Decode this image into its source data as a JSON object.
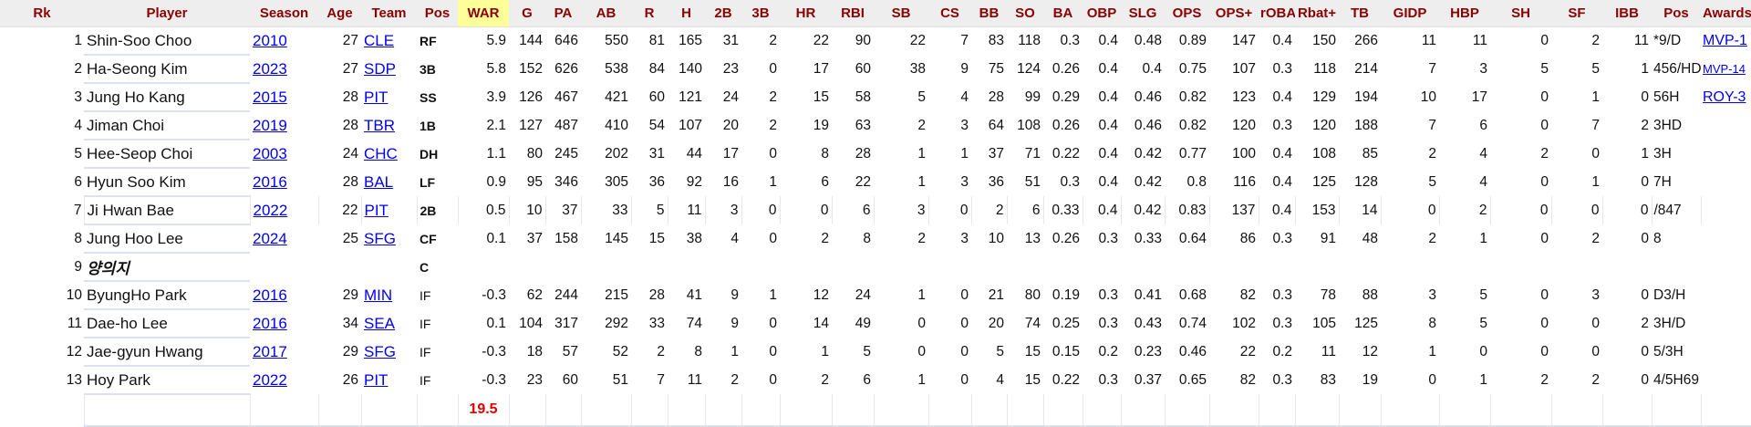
{
  "columns": [
    "Rk",
    "Player",
    "Season",
    "Age",
    "Team",
    "Pos",
    "WAR",
    "G",
    "PA",
    "AB",
    "R",
    "H",
    "2B",
    "3B",
    "HR",
    "RBI",
    "SB",
    "CS",
    "BB",
    "SO",
    "BA",
    "OBP",
    "SLG",
    "OPS",
    "OPS+",
    "rOBA",
    "Rbat+",
    "TB",
    "GIDP",
    "HBP",
    "SH",
    "SF",
    "IBB",
    "Pos",
    "Awards"
  ],
  "highlight_column": "WAR",
  "colors": {
    "header_text": "#8b0000",
    "header_bg": "#eeeeee",
    "highlight_bg": "#ffff99",
    "link": "#0000ee",
    "total": "#e00000"
  },
  "rows": [
    {
      "rk": "1",
      "player": "Shin-Soo Choo",
      "season": "2010",
      "age": "27",
      "team": "CLE",
      "pos": "RF",
      "stats": [
        "5.9",
        "144",
        "646",
        "550",
        "81",
        "165",
        "31",
        "2",
        "22",
        "90",
        "22",
        "7",
        "83",
        "118",
        "0.3",
        "0.4",
        "0.48",
        "0.89",
        "147",
        "0.4",
        "150",
        "266",
        "11",
        "11",
        "0",
        "2",
        "11"
      ],
      "pos2": "*9/D",
      "award": "MVP-1"
    },
    {
      "rk": "2",
      "player": "Ha-Seong Kim",
      "season": "2023",
      "age": "27",
      "team": "SDP",
      "pos": "3B",
      "stats": [
        "5.8",
        "152",
        "626",
        "538",
        "84",
        "140",
        "23",
        "0",
        "17",
        "60",
        "38",
        "9",
        "75",
        "124",
        "0.26",
        "0.4",
        "0.4",
        "0.75",
        "107",
        "0.3",
        "118",
        "214",
        "7",
        "3",
        "5",
        "5",
        "1"
      ],
      "pos2": "456/HD",
      "award": "MVP-14",
      "award_small": true
    },
    {
      "rk": "3",
      "player": "Jung Ho Kang",
      "season": "2015",
      "age": "28",
      "team": "PIT",
      "pos": "SS",
      "stats": [
        "3.9",
        "126",
        "467",
        "421",
        "60",
        "121",
        "24",
        "2",
        "15",
        "58",
        "5",
        "4",
        "28",
        "99",
        "0.29",
        "0.4",
        "0.46",
        "0.82",
        "123",
        "0.4",
        "129",
        "194",
        "10",
        "17",
        "0",
        "1",
        "0"
      ],
      "pos2": "56H",
      "award": "ROY-3"
    },
    {
      "rk": "4",
      "player": "Jiman Choi",
      "season": "2019",
      "age": "28",
      "team": "TBR",
      "pos": "1B",
      "stats": [
        "2.1",
        "127",
        "487",
        "410",
        "54",
        "107",
        "20",
        "2",
        "19",
        "63",
        "2",
        "3",
        "64",
        "108",
        "0.26",
        "0.4",
        "0.46",
        "0.82",
        "120",
        "0.3",
        "120",
        "188",
        "7",
        "6",
        "0",
        "7",
        "2"
      ],
      "pos2": "3HD",
      "award": ""
    },
    {
      "rk": "5",
      "player": "Hee-Seop Choi",
      "season": "2003",
      "age": "24",
      "team": "CHC",
      "pos": "DH",
      "stats": [
        "1.1",
        "80",
        "245",
        "202",
        "31",
        "44",
        "17",
        "0",
        "8",
        "28",
        "1",
        "1",
        "37",
        "71",
        "0.22",
        "0.4",
        "0.42",
        "0.77",
        "100",
        "0.4",
        "108",
        "85",
        "2",
        "4",
        "2",
        "0",
        "1"
      ],
      "pos2": "3H",
      "award": ""
    },
    {
      "rk": "6",
      "player": "Hyun Soo Kim",
      "season": "2016",
      "age": "28",
      "team": "BAL",
      "pos": "LF",
      "stats": [
        "0.9",
        "95",
        "346",
        "305",
        "36",
        "92",
        "16",
        "1",
        "6",
        "22",
        "1",
        "3",
        "36",
        "51",
        "0.3",
        "0.4",
        "0.42",
        "0.8",
        "116",
        "0.4",
        "125",
        "128",
        "5",
        "4",
        "0",
        "1",
        "0"
      ],
      "pos2": "7H",
      "award": ""
    },
    {
      "rk": "7",
      "player": "Ji Hwan Bae",
      "season": "2022",
      "age": "22",
      "team": "PIT",
      "pos": "2B",
      "stats": [
        "0.5",
        "10",
        "37",
        "33",
        "5",
        "11",
        "3",
        "0",
        "0",
        "6",
        "3",
        "0",
        "2",
        "6",
        "0.33",
        "0.4",
        "0.42",
        "0.83",
        "137",
        "0.4",
        "153",
        "14",
        "0",
        "2",
        "0",
        "0",
        "0"
      ],
      "pos2": "/847",
      "award": "",
      "grid": true
    },
    {
      "rk": "8",
      "player": "Jung Hoo Lee",
      "season": "2024",
      "age": "25",
      "team": "SFG",
      "pos": "CF",
      "stats": [
        "0.1",
        "37",
        "158",
        "145",
        "15",
        "38",
        "4",
        "0",
        "2",
        "8",
        "2",
        "3",
        "10",
        "13",
        "0.26",
        "0.3",
        "0.33",
        "0.64",
        "86",
        "0.3",
        "91",
        "48",
        "2",
        "1",
        "0",
        "2",
        "0"
      ],
      "pos2": "8",
      "award": ""
    },
    {
      "rk": "9",
      "player": "양의지",
      "player_italic": true,
      "season": "",
      "age": "",
      "team": "",
      "pos": "C",
      "stats": [
        "",
        "",
        "",
        "",
        "",
        "",
        "",
        "",
        "",
        "",
        "",
        "",
        "",
        "",
        "",
        "",
        "",
        "",
        "",
        "",
        "",
        "",
        "",
        "",
        "",
        "",
        ""
      ],
      "pos2": "",
      "award": ""
    },
    {
      "rk": "10",
      "player": "ByungHo Park",
      "season": "2016",
      "age": "29",
      "team": "MIN",
      "pos": "IF",
      "pos_plain": true,
      "stats": [
        "-0.3",
        "62",
        "244",
        "215",
        "28",
        "41",
        "9",
        "1",
        "12",
        "24",
        "1",
        "0",
        "21",
        "80",
        "0.19",
        "0.3",
        "0.41",
        "0.68",
        "82",
        "0.3",
        "78",
        "88",
        "3",
        "5",
        "0",
        "3",
        "0"
      ],
      "pos2": "D3/H",
      "award": ""
    },
    {
      "rk": "11",
      "player": "Dae-ho Lee",
      "season": "2016",
      "age": "34",
      "team": "SEA",
      "pos": "IF",
      "pos_plain": true,
      "stats": [
        "0.1",
        "104",
        "317",
        "292",
        "33",
        "74",
        "9",
        "0",
        "14",
        "49",
        "0",
        "0",
        "20",
        "74",
        "0.25",
        "0.3",
        "0.43",
        "0.74",
        "102",
        "0.3",
        "105",
        "125",
        "8",
        "5",
        "0",
        "0",
        "2"
      ],
      "pos2": "3H/D",
      "award": ""
    },
    {
      "rk": "12",
      "player": "Jae-gyun Hwang",
      "season": "2017",
      "age": "29",
      "team": "SFG",
      "pos": "IF",
      "pos_plain": true,
      "stats": [
        "-0.3",
        "18",
        "57",
        "52",
        "2",
        "8",
        "1",
        "0",
        "1",
        "5",
        "0",
        "0",
        "5",
        "15",
        "0.15",
        "0.2",
        "0.23",
        "0.46",
        "22",
        "0.2",
        "11",
        "12",
        "1",
        "0",
        "0",
        "0",
        "0"
      ],
      "pos2": "5/3H",
      "award": ""
    },
    {
      "rk": "13",
      "player": "Hoy Park",
      "season": "2022",
      "age": "26",
      "team": "PIT",
      "pos": "IF",
      "pos_plain": true,
      "stats": [
        "-0.3",
        "23",
        "60",
        "51",
        "7",
        "11",
        "2",
        "0",
        "2",
        "6",
        "1",
        "0",
        "4",
        "15",
        "0.22",
        "0.3",
        "0.37",
        "0.65",
        "82",
        "0.3",
        "83",
        "19",
        "0",
        "1",
        "2",
        "2",
        "0"
      ],
      "pos2": "4/5H69",
      "award": ""
    }
  ],
  "summary": {
    "war_total": "19.5"
  }
}
